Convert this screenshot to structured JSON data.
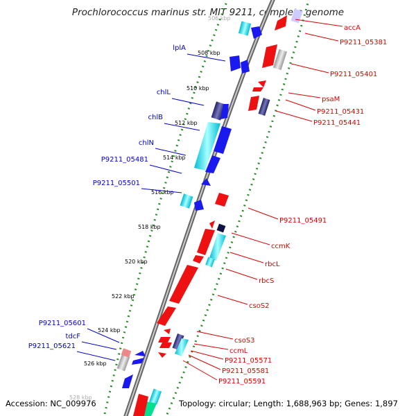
{
  "title": "Prochlorococcus marinus str. MIT 9211, complete genome",
  "footer": {
    "accession": "Accession: NC_009976",
    "topology": "Topology: circular; Length: 1,688,963 bp; Genes: 1,897"
  },
  "colors": {
    "forward_label": "#0000cc",
    "reverse_label": "#dd0000",
    "forward_gene": "#1a1aee",
    "forward_gene_alt": "#00e0f0",
    "reverse_gene": "#ee1111",
    "backbone": "#888888",
    "tick": "#2a8a2a"
  },
  "ticks": [
    "506 kbp",
    "508 kbp",
    "510 kbp",
    "512 kbp",
    "514 kbp",
    "516 kbp",
    "518 kbp",
    "520 kbp",
    "522 kbp",
    "524 kbp",
    "526 kbp",
    "528 kbp"
  ],
  "forward_labels": [
    "lplA",
    "chlL",
    "chlB",
    "chlN",
    "P9211_05481",
    "P9211_05501",
    "P9211_05601",
    "tdcF",
    "P9211_05621"
  ],
  "reverse_labels": [
    "accA",
    "P9211_05381",
    "P9211_05401",
    "psaM",
    "P9211_05431",
    "P9211_05441",
    "P9211_05491",
    "ccmK",
    "rbcL",
    "rbcS",
    "csoS2",
    "csoS3",
    "ccmL",
    "P9211_05571",
    "P9211_05581",
    "P9211_05591"
  ]
}
